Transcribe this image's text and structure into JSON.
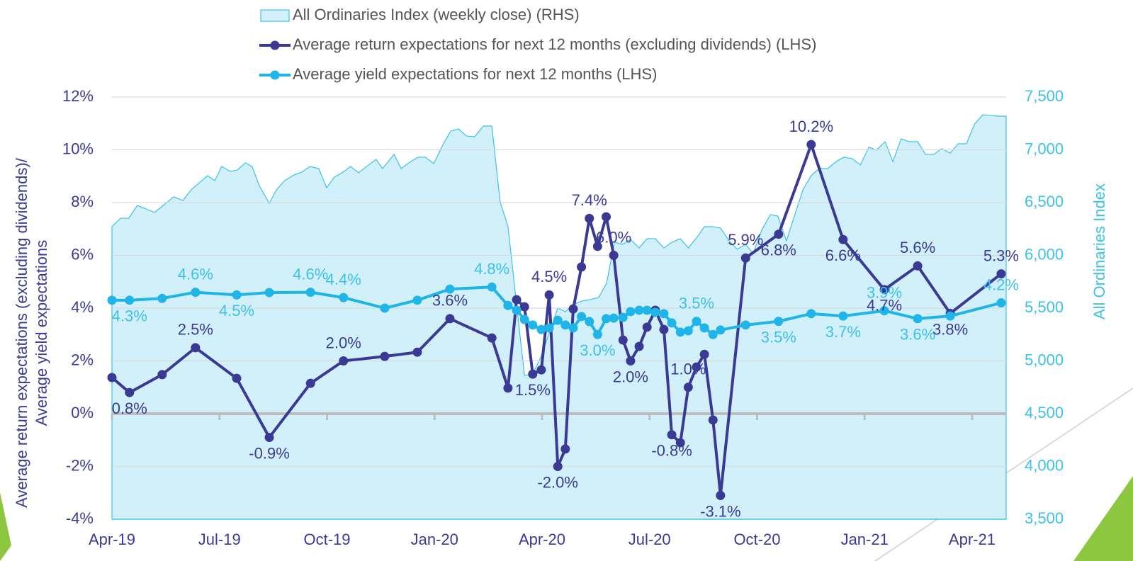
{
  "chart_data": {
    "type": "line",
    "ylabel": [
      "Average return expectations (excluding dividends)/",
      "Average yield expectations"
    ],
    "y2label": "All Ordinaries Index",
    "xlim": [
      0,
      24.95
    ],
    "xticks": [
      {
        "value": 0,
        "label": "Apr-19"
      },
      {
        "value": 3,
        "label": "Jul-19"
      },
      {
        "value": 6,
        "label": "Oct-19"
      },
      {
        "value": 9,
        "label": "Jan-20"
      },
      {
        "value": 12,
        "label": "Apr-20"
      },
      {
        "value": 15,
        "label": "Jul-20"
      },
      {
        "value": 18,
        "label": "Oct-20"
      },
      {
        "value": 21,
        "label": "Jan-21"
      },
      {
        "value": 24,
        "label": "Apr-21"
      }
    ],
    "ylim": [
      -4,
      12
    ],
    "yticks": [
      {
        "value": -4,
        "label": "-4%"
      },
      {
        "value": -2,
        "label": "-2%"
      },
      {
        "value": 0,
        "label": "0%"
      },
      {
        "value": 2,
        "label": "2%"
      },
      {
        "value": 4,
        "label": "4%"
      },
      {
        "value": 6,
        "label": "6%"
      },
      {
        "value": 8,
        "label": "8%"
      },
      {
        "value": 10,
        "label": "10%"
      },
      {
        "value": 12,
        "label": "12%"
      }
    ],
    "y2lim": [
      3500,
      7500
    ],
    "y2ticks": [
      {
        "value": 3500,
        "label": "3,500"
      },
      {
        "value": 4000,
        "label": "4,000"
      },
      {
        "value": 4500,
        "label": "4,500"
      },
      {
        "value": 5000,
        "label": "5,000"
      },
      {
        "value": 5500,
        "label": "5,500"
      },
      {
        "value": 6000,
        "label": "6,000"
      },
      {
        "value": 6500,
        "label": "6,500"
      },
      {
        "value": 7000,
        "label": "7,000"
      },
      {
        "value": 7500,
        "label": "7,500"
      }
    ],
    "grid": true,
    "legend": "top",
    "series": [
      {
        "name": "All Ordinaries Index (weekly close) (RHS)",
        "type": "area",
        "axis": "y2",
        "color": "#3cc1ea",
        "fill": "#d2f0fa",
        "x": [
          0,
          0.24,
          0.47,
          0.71,
          1.19,
          1.72,
          1.98,
          2.21,
          2.67,
          2.87,
          3.06,
          3.3,
          3.5,
          3.72,
          3.91,
          4.11,
          4.39,
          4.59,
          4.82,
          5.08,
          5.3,
          5.52,
          5.77,
          5.99,
          6.21,
          6.45,
          6.66,
          6.88,
          7.16,
          7.37,
          7.55,
          7.87,
          8.07,
          8.28,
          8.54,
          8.74,
          8.98,
          9.23,
          9.45,
          9.67,
          9.89,
          10.12,
          10.36,
          10.6,
          10.83,
          11.05,
          11.29,
          11.51,
          11.74,
          11.96,
          12.2,
          12.44,
          12.65,
          12.87,
          13.11,
          13.34,
          13.58,
          13.8,
          14.02,
          14.25,
          14.47,
          14.71,
          14.93,
          15.16,
          15.4,
          15.62,
          15.86,
          16.08,
          16.31,
          16.53,
          16.77,
          16.98,
          17.22,
          17.44,
          17.68,
          17.89,
          18.13,
          18.37,
          18.58,
          18.82,
          19.04,
          19.28,
          19.51,
          19.73,
          19.97,
          20.21,
          20.42,
          20.66,
          20.88,
          21.12,
          21.33,
          21.57,
          21.79,
          22.02,
          22.24,
          22.48,
          22.7,
          22.93,
          23.15,
          23.39,
          23.61,
          23.84,
          24.07,
          24.3,
          24.52,
          24.75,
          24.95
        ],
        "values": [
          6272,
          6352,
          6352,
          6473,
          6406,
          6554,
          6520,
          6621,
          6755,
          6708,
          6842,
          6795,
          6809,
          6876,
          6842,
          6661,
          6493,
          6621,
          6708,
          6762,
          6789,
          6842,
          6822,
          6641,
          6742,
          6789,
          6842,
          6782,
          6856,
          6909,
          6822,
          6956,
          6822,
          6876,
          6930,
          6930,
          6869,
          7044,
          7178,
          7198,
          7131,
          7124,
          7225,
          7225,
          6507,
          6272,
          5534,
          4862,
          4876,
          5030,
          5265,
          5500,
          5467,
          5534,
          5567,
          5581,
          5601,
          5735,
          6124,
          6104,
          6151,
          6070,
          6158,
          6158,
          6070,
          6124,
          6158,
          6070,
          6164,
          6272,
          6272,
          6258,
          6138,
          6057,
          6104,
          6017,
          6238,
          6386,
          6372,
          6138,
          6372,
          6621,
          6755,
          6822,
          6822,
          6889,
          6930,
          6916,
          6856,
          7024,
          6997,
          7077,
          6889,
          7104,
          7077,
          7077,
          6956,
          6956,
          7010,
          6969,
          7057,
          7057,
          7245,
          7332,
          7325,
          7319,
          7319
        ]
      },
      {
        "name": "Average return expectations for next 12 months (excluding dividends) (LHS)",
        "type": "line",
        "color": "#3a3a94",
        "x": [
          0,
          0.49,
          1.4,
          2.33,
          3.48,
          4.39,
          5.54,
          6.46,
          7.61,
          8.52,
          9.43,
          10.6,
          11.05,
          11.29,
          11.51,
          11.74,
          11.98,
          12.2,
          12.44,
          12.65,
          12.87,
          13.1,
          13.32,
          13.55,
          13.79,
          14.0,
          14.26,
          14.47,
          14.71,
          14.93,
          15.16,
          15.4,
          15.62,
          15.86,
          16.08,
          16.31,
          16.53,
          16.77,
          16.98,
          17.68,
          18.6,
          19.51,
          20.4,
          21.55,
          22.48,
          23.39,
          24.81
        ],
        "values": [
          1.37,
          0.8,
          1.48,
          2.5,
          1.34,
          -0.9,
          1.15,
          2.0,
          2.17,
          2.33,
          3.6,
          2.87,
          0.97,
          4.32,
          4.05,
          1.5,
          1.66,
          4.5,
          -2.0,
          -1.34,
          3.97,
          5.56,
          7.4,
          6.34,
          7.46,
          6.0,
          2.79,
          2.0,
          2.55,
          3.28,
          3.92,
          3.19,
          -0.8,
          -1.1,
          1.0,
          1.77,
          2.25,
          -0.24,
          -3.1,
          5.9,
          6.8,
          10.2,
          6.6,
          4.7,
          5.6,
          3.8,
          5.3
        ],
        "value_labels": [
          null,
          "0.8%",
          null,
          "2.5%",
          null,
          "-0.9%",
          null,
          "2.0%",
          null,
          null,
          "3.6%",
          null,
          null,
          null,
          null,
          "1.5%",
          null,
          "4.5%",
          "-2.0%",
          null,
          null,
          null,
          "7.4%",
          null,
          null,
          "6.0%",
          null,
          "2.0%",
          null,
          null,
          null,
          null,
          "-0.8%",
          null,
          "1.0%",
          null,
          null,
          null,
          "-3.1%",
          "5.9%",
          "6.8%",
          "10.2%",
          "6.6%",
          "4.7%",
          "5.6%",
          "3.8%",
          "5.3%"
        ]
      },
      {
        "name": "Average yield expectations for next 12 months (LHS)",
        "type": "line",
        "color": "#1fb5e8",
        "x": [
          0,
          0.49,
          1.4,
          2.33,
          3.48,
          4.39,
          5.54,
          6.46,
          7.61,
          8.52,
          9.43,
          10.6,
          11.05,
          11.29,
          11.51,
          11.74,
          11.98,
          12.2,
          12.44,
          12.65,
          12.87,
          13.1,
          13.32,
          13.55,
          13.79,
          14.0,
          14.26,
          14.47,
          14.71,
          14.93,
          15.16,
          15.4,
          15.62,
          15.86,
          16.08,
          16.31,
          16.53,
          16.77,
          16.98,
          17.68,
          18.6,
          19.51,
          20.4,
          21.55,
          22.48,
          23.39,
          24.81
        ],
        "values": [
          4.3,
          4.3,
          4.37,
          4.6,
          4.5,
          4.59,
          4.6,
          4.4,
          4.0,
          4.3,
          4.72,
          4.8,
          4.1,
          3.92,
          3.57,
          3.36,
          3.19,
          3.25,
          3.54,
          3.36,
          3.25,
          3.68,
          3.49,
          3.0,
          3.6,
          3.62,
          3.65,
          3.87,
          3.92,
          3.92,
          3.84,
          3.79,
          3.44,
          3.09,
          3.14,
          3.5,
          3.25,
          3.0,
          3.17,
          3.36,
          3.5,
          3.79,
          3.7,
          3.9,
          3.6,
          3.7,
          4.2
        ],
        "value_labels": [
          null,
          "4.3%",
          null,
          "4.6%",
          "4.5%",
          null,
          "4.6%",
          "4.4%",
          null,
          null,
          null,
          "4.8%",
          null,
          null,
          null,
          null,
          null,
          null,
          null,
          null,
          null,
          null,
          null,
          "3.0%",
          null,
          null,
          null,
          null,
          null,
          null,
          null,
          null,
          null,
          null,
          null,
          "3.5%",
          null,
          null,
          null,
          null,
          "3.5%",
          null,
          "3.7%",
          "3.9%",
          "3.6%",
          null,
          "4.2%"
        ]
      }
    ]
  }
}
